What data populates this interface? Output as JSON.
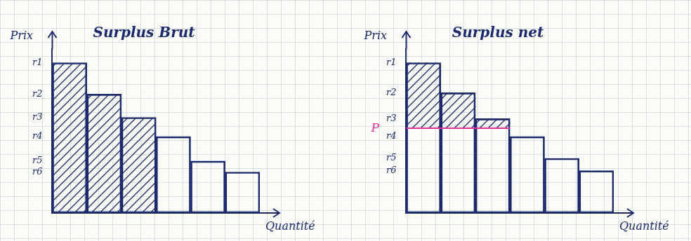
{
  "chart_data": [
    {
      "type": "bar",
      "title": "Surplus Brut",
      "x_label": "Quantité",
      "y_label": "Prix",
      "categories": [
        null,
        null,
        null,
        null,
        null,
        null
      ],
      "values": [
        11,
        8.7,
        7,
        5.6,
        3.8,
        3
      ],
      "color": "#1c2a6b",
      "colors": [
        "#1c2a6b",
        "#1c2a6b",
        "#1c2a6b",
        "transparent",
        "transparent",
        "transparent"
      ],
      "ylim": [
        0,
        12
      ],
      "yticks": [
        {
          "value": 11,
          "label": "r1"
        },
        {
          "value": 8.7,
          "label": "r2"
        },
        {
          "value": 7,
          "label": "r3"
        },
        {
          "value": 5.6,
          "label": "r4"
        },
        {
          "value": 3.8,
          "label": "r5"
        },
        {
          "value": 3,
          "label": "r6"
        }
      ],
      "grid": false,
      "tick_labels": "y"
    },
    {
      "type": "bar",
      "title": "Surplus net",
      "x_label": "Quantité",
      "y_label": "Prix",
      "categories": [
        null,
        null,
        null,
        null,
        null,
        null
      ],
      "values": [
        11,
        8.8,
        6.9,
        5.6,
        4,
        3.1
      ],
      "color": "#1c2a6b",
      "colors": [
        "#1c2a6b",
        "#1c2a6b",
        "#1c2a6b",
        "transparent",
        "transparent",
        "transparent"
      ],
      "price": {
        "value": 6.2,
        "label": "P",
        "color": "#e0309a"
      },
      "ylim": [
        0,
        12
      ],
      "yticks": [
        {
          "value": 11,
          "label": "r1"
        },
        {
          "value": 8.8,
          "label": "r2"
        },
        {
          "value": 6.9,
          "label": "r3"
        },
        {
          "value": 5.6,
          "label": "r4"
        },
        {
          "value": 4,
          "label": "r5"
        },
        {
          "value": 3.1,
          "label": "r6"
        }
      ],
      "grid": false,
      "tick_labels": "y"
    }
  ]
}
